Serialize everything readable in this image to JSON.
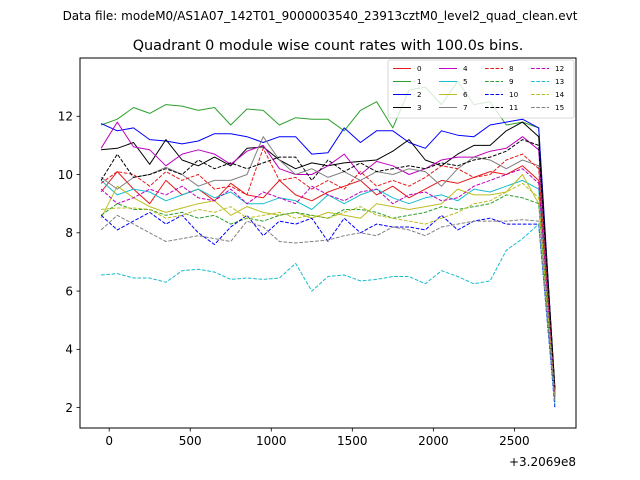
{
  "figure": {
    "suptitle": "Data file: modeM0/AS1A07_142T01_9000003540_23913cztM0_level2_quad_clean.evt"
  },
  "chart_data": {
    "type": "line",
    "title": "Quadrant 0 module wise count rates with 100.0s bins.",
    "xlabel": "",
    "ylabel": "",
    "x_offset_label": "+3.2069e8",
    "xlim": [
      -180,
      2880
    ],
    "ylim": [
      1.3,
      14.0
    ],
    "x_ticks": [
      0,
      500,
      1000,
      1500,
      2000,
      2500
    ],
    "x_tick_labels": [
      "0",
      "500",
      "1000",
      "1500",
      "2000",
      "2500"
    ],
    "y_ticks": [
      2,
      4,
      6,
      8,
      10,
      12
    ],
    "y_tick_labels": [
      "2",
      "4",
      "6",
      "8",
      "10",
      "12"
    ],
    "grid": false,
    "legend_position": "top-right",
    "x": [
      -50,
      50,
      150,
      250,
      350,
      450,
      550,
      650,
      750,
      850,
      950,
      1050,
      1150,
      1250,
      1350,
      1450,
      1550,
      1650,
      1750,
      1850,
      1950,
      2050,
      2150,
      2250,
      2350,
      2450,
      2550,
      2650,
      2750
    ],
    "series": [
      {
        "name": "0",
        "color": "#e41a1c",
        "dash": false,
        "values": [
          9.4,
          10.1,
          9.5,
          9.0,
          9.8,
          9.3,
          9.5,
          9.1,
          9.7,
          9.3,
          9.2,
          9.8,
          9.3,
          9.1,
          9.4,
          9.6,
          9.8,
          9.3,
          9.6,
          9.2,
          9.5,
          9.8,
          9.7,
          9.9,
          10.1,
          10.0,
          10.3,
          9.8,
          2.5
        ]
      },
      {
        "name": "1",
        "color": "#2ca02c",
        "dash": false,
        "values": [
          11.7,
          11.9,
          12.3,
          12.1,
          12.4,
          12.35,
          12.2,
          12.3,
          11.7,
          12.25,
          12.2,
          11.7,
          11.95,
          11.9,
          11.9,
          11.5,
          12.2,
          12.5,
          11.6,
          12.9,
          13.0,
          12.4,
          13.2,
          12.4,
          12.5,
          11.7,
          11.8,
          11.6,
          2.6
        ]
      },
      {
        "name": "2",
        "color": "#0000ff",
        "dash": false,
        "values": [
          11.75,
          11.5,
          11.6,
          11.2,
          11.15,
          11.05,
          11.15,
          11.4,
          11.4,
          11.3,
          11.1,
          11.3,
          11.3,
          10.7,
          10.75,
          11.6,
          11.1,
          11.5,
          11.5,
          11.1,
          10.9,
          11.5,
          11.35,
          11.3,
          11.7,
          11.8,
          11.9,
          11.6,
          2.6
        ]
      },
      {
        "name": "3",
        "color": "#000000",
        "dash": false,
        "values": [
          10.85,
          10.9,
          11.1,
          10.35,
          11.2,
          10.5,
          10.3,
          10.6,
          10.3,
          10.9,
          10.95,
          10.5,
          10.2,
          10.4,
          10.3,
          10.4,
          10.45,
          10.5,
          10.8,
          11.2,
          10.5,
          10.3,
          10.7,
          11.0,
          11.0,
          11.5,
          11.8,
          11.3,
          2.7
        ]
      },
      {
        "name": "4",
        "color": "#bf00bf",
        "dash": false,
        "values": [
          10.9,
          11.8,
          10.95,
          10.85,
          10.3,
          10.7,
          10.85,
          10.7,
          10.35,
          10.8,
          11.0,
          10.2,
          10.0,
          10.0,
          10.3,
          10.7,
          10.0,
          10.45,
          10.3,
          10.0,
          10.2,
          10.5,
          10.6,
          10.6,
          10.8,
          10.9,
          11.3,
          10.85,
          2.4
        ]
      },
      {
        "name": "5",
        "color": "#17becf",
        "dash": false,
        "values": [
          9.8,
          9.3,
          9.5,
          9.4,
          9.1,
          9.3,
          9.5,
          9.2,
          9.4,
          9.0,
          9.0,
          9.2,
          9.1,
          8.8,
          9.3,
          9.0,
          9.3,
          9.5,
          9.2,
          9.0,
          9.2,
          9.3,
          9.1,
          9.5,
          9.4,
          9.6,
          9.8,
          9.5,
          2.3
        ]
      },
      {
        "name": "6",
        "color": "#bcbd22",
        "dash": false,
        "values": [
          8.5,
          9.6,
          9.2,
          8.9,
          8.7,
          8.85,
          9.0,
          9.1,
          8.6,
          8.9,
          8.7,
          8.6,
          8.7,
          8.5,
          8.7,
          8.6,
          8.5,
          9.0,
          8.9,
          8.8,
          8.9,
          9.0,
          9.5,
          9.3,
          9.3,
          9.4,
          10.0,
          9.0,
          2.2
        ]
      },
      {
        "name": "7",
        "color": "#808080",
        "dash": false,
        "values": [
          9.9,
          9.5,
          9.9,
          10.0,
          10.25,
          10.0,
          9.6,
          9.8,
          9.8,
          10.0,
          11.3,
          10.5,
          10.0,
          10.2,
          9.9,
          10.1,
          9.8,
          10.1,
          10.0,
          10.2,
          10.1,
          9.6,
          10.2,
          10.6,
          10.5,
          10.2,
          10.5,
          10.3,
          2.5
        ]
      },
      {
        "name": "8",
        "color": "#e41a1c",
        "dash": true,
        "values": [
          9.7,
          10.1,
          10.0,
          9.6,
          10.1,
          9.8,
          10.0,
          9.5,
          9.6,
          9.3,
          10.9,
          9.8,
          9.9,
          9.5,
          9.8,
          9.5,
          10.1,
          9.6,
          9.8,
          9.6,
          9.9,
          10.3,
          10.2,
          9.9,
          10.0,
          10.5,
          10.7,
          10.2,
          2.4
        ]
      },
      {
        "name": "9",
        "color": "#2ca02c",
        "dash": true,
        "values": [
          8.6,
          9.0,
          8.8,
          8.8,
          8.6,
          8.7,
          8.5,
          8.6,
          8.3,
          8.5,
          8.4,
          8.6,
          8.7,
          8.6,
          8.5,
          8.8,
          8.8,
          8.7,
          8.5,
          8.6,
          8.7,
          8.9,
          8.8,
          8.9,
          9.0,
          9.3,
          9.2,
          9.0,
          2.2
        ]
      },
      {
        "name": "10",
        "color": "#0000ff",
        "dash": true,
        "values": [
          8.6,
          8.1,
          8.4,
          8.7,
          8.3,
          8.6,
          8.0,
          7.6,
          8.2,
          8.6,
          7.9,
          8.4,
          8.3,
          8.5,
          7.7,
          8.5,
          8.0,
          8.3,
          8.2,
          8.2,
          8.1,
          8.6,
          8.1,
          8.4,
          8.5,
          8.3,
          8.3,
          8.3,
          2.0
        ]
      },
      {
        "name": "11",
        "color": "#000000",
        "dash": true,
        "values": [
          9.8,
          10.7,
          9.9,
          10.0,
          10.2,
          10.0,
          10.5,
          10.2,
          10.4,
          10.2,
          10.4,
          10.6,
          10.6,
          9.8,
          10.5,
          10.1,
          10.4,
          10.1,
          10.2,
          10.3,
          10.2,
          10.4,
          10.3,
          10.5,
          10.6,
          10.8,
          11.2,
          11.0,
          2.6
        ]
      },
      {
        "name": "12",
        "color": "#bf00bf",
        "dash": true,
        "values": [
          9.5,
          9.0,
          9.2,
          9.5,
          9.3,
          9.6,
          9.2,
          9.1,
          9.5,
          9.0,
          9.4,
          9.2,
          9.0,
          9.6,
          9.3,
          9.1,
          9.4,
          9.5,
          9.0,
          9.3,
          9.4,
          9.1,
          9.2,
          9.6,
          9.8,
          10.0,
          10.2,
          9.7,
          2.3
        ]
      },
      {
        "name": "13",
        "color": "#17becf",
        "dash": true,
        "values": [
          6.55,
          6.6,
          6.45,
          6.45,
          6.3,
          6.7,
          6.75,
          6.65,
          6.4,
          6.45,
          6.4,
          6.45,
          6.95,
          6.0,
          6.5,
          6.55,
          6.35,
          6.4,
          6.5,
          6.5,
          6.25,
          6.7,
          6.5,
          6.25,
          6.35,
          7.4,
          7.8,
          8.3,
          2.1
        ]
      },
      {
        "name": "14",
        "color": "#bcbd22",
        "dash": true,
        "values": [
          8.8,
          8.85,
          8.85,
          8.8,
          8.5,
          8.6,
          8.8,
          8.7,
          8.9,
          8.5,
          8.6,
          8.7,
          8.5,
          8.6,
          8.5,
          8.7,
          8.9,
          8.6,
          8.5,
          8.4,
          8.3,
          8.5,
          8.7,
          9.0,
          9.1,
          9.4,
          9.7,
          9.2,
          2.3
        ]
      },
      {
        "name": "15",
        "color": "#808080",
        "dash": true,
        "values": [
          8.1,
          8.6,
          8.3,
          8.0,
          7.7,
          7.8,
          7.9,
          7.8,
          7.7,
          8.4,
          8.2,
          7.7,
          7.65,
          7.7,
          7.75,
          7.9,
          8.0,
          7.9,
          8.2,
          8.1,
          7.9,
          8.2,
          8.3,
          8.4,
          8.4,
          8.4,
          8.45,
          8.4,
          2.2
        ]
      }
    ]
  }
}
